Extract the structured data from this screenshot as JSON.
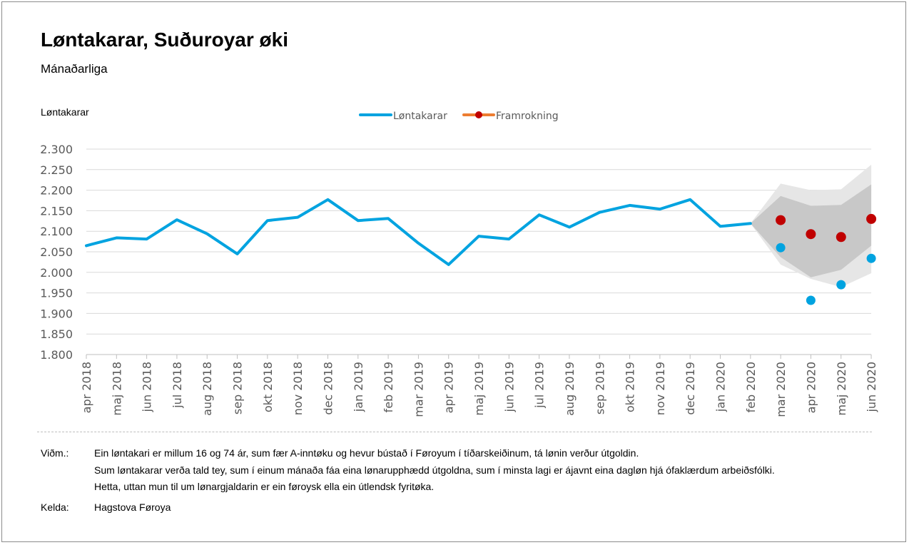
{
  "title": "Løntakarar, Suðuroyar øki",
  "subtitle": "Mánaðarliga",
  "y_axis_label": "Løntakarar",
  "legend": [
    {
      "name": "Løntakarar",
      "color": "#00a3e0"
    },
    {
      "name": "Framrokning",
      "color": "#ed7d31",
      "marker_color": "#c00000"
    }
  ],
  "chart_data": {
    "type": "line",
    "ylim": [
      1800,
      2300
    ],
    "ytick_step": 50,
    "ytick_labels": [
      "1.800",
      "1.850",
      "1.900",
      "1.950",
      "2.000",
      "2.050",
      "2.100",
      "2.150",
      "2.200",
      "2.250",
      "2.300"
    ],
    "categories": [
      "apr 2018",
      "maj 2018",
      "jun 2018",
      "jul 2018",
      "aug 2018",
      "sep 2018",
      "okt 2018",
      "nov 2018",
      "dec 2018",
      "jan 2019",
      "feb 2019",
      "mar 2019",
      "apr 2019",
      "maj 2019",
      "jun 2019",
      "jul 2019",
      "aug 2019",
      "sep 2019",
      "okt 2019",
      "nov 2019",
      "dec 2019",
      "jan 2020",
      "feb 2020",
      "mar 2020",
      "apr 2020",
      "maj 2020",
      "jun 2020"
    ],
    "series": [
      {
        "name": "Løntakarar",
        "color": "#00a3e0",
        "line_values": [
          2065,
          2084,
          2081,
          2128,
          2094,
          2045,
          2126,
          2134,
          2177,
          2126,
          2131,
          2071,
          2019,
          2088,
          2081,
          2140,
          2110,
          2146,
          2163,
          2154,
          2177,
          2112,
          2119
        ],
        "points": [
          {
            "x": "mar 2020",
            "y": 2060
          },
          {
            "x": "apr 2020",
            "y": 1932
          },
          {
            "x": "maj 2020",
            "y": 1970
          },
          {
            "x": "jun 2020",
            "y": 2034
          }
        ]
      },
      {
        "name": "Framrokning",
        "color": "#c00000",
        "points": [
          {
            "x": "mar 2020",
            "y": 2127
          },
          {
            "x": "apr 2020",
            "y": 2093
          },
          {
            "x": "maj 2020",
            "y": 2086
          },
          {
            "x": "jun 2020",
            "y": 2130
          }
        ],
        "band_inner": {
          "start": "feb 2020",
          "lower": [
            2119,
            2037,
            1988,
            2006,
            2065
          ],
          "upper": [
            2119,
            2186,
            2162,
            2164,
            2214
          ]
        },
        "band_outer": {
          "start": "feb 2020",
          "lower": [
            2119,
            2019,
            1984,
            1964,
            1998
          ],
          "upper": [
            2119,
            2216,
            2200,
            2202,
            2262
          ]
        }
      }
    ],
    "grid": true
  },
  "notes_label": "Viðm.:",
  "notes": [
    "Ein løntakari er millum 16 og 74 ár, sum fær A-inntøku og hevur bústað í Føroyum í tíðarskeiðinum, tá lønin verður útgoldin.",
    "Sum løntakarar verða tald tey, sum í einum mánaða fáa eina lønarupphædd útgoldna, sum í minsta lagi er ájavnt eina dagløn hjá ófaklærdum arbeiðsfólki.",
    "Hetta, uttan mun til um lønargjaldarin er ein føroysk ella ein útlendsk fyritøka."
  ],
  "source_label": "Kelda:",
  "source": "Hagstova Føroya"
}
